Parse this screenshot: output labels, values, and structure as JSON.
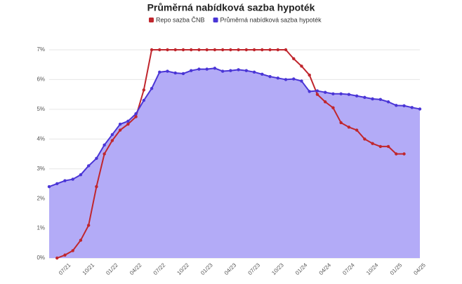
{
  "chart_data": {
    "type": "line",
    "title": "Průměrná nabídková sazba hypoték",
    "categories": [
      null,
      null,
      "07/21",
      null,
      null,
      "10/21",
      null,
      null,
      "01/22",
      null,
      null,
      "04/22",
      null,
      null,
      "07/22",
      null,
      null,
      "10/22",
      null,
      null,
      "01/23",
      null,
      null,
      "04/23",
      null,
      null,
      "07/23",
      null,
      null,
      "10/23",
      null,
      null,
      "01/24",
      null,
      null,
      "04/24",
      null,
      null,
      "07/24",
      null,
      null,
      "10/24",
      null,
      null,
      "01/25",
      null,
      null,
      "04/25"
    ],
    "series": [
      {
        "name": "Repo sazba ČNB",
        "color": "#c0262d",
        "area": false,
        "values": [
          null,
          0.0,
          0.1,
          0.25,
          0.6,
          1.1,
          2.4,
          3.5,
          3.95,
          4.3,
          4.5,
          4.75,
          5.65,
          7.0,
          7.0,
          7.0,
          7.0,
          7.0,
          7.0,
          7.0,
          7.0,
          7.0,
          7.0,
          7.0,
          7.0,
          7.0,
          7.0,
          7.0,
          7.0,
          7.0,
          7.0,
          6.7,
          6.45,
          6.15,
          5.5,
          5.25,
          5.05,
          4.55,
          4.4,
          4.3,
          4.0,
          3.85,
          3.75,
          3.75,
          3.5,
          3.5,
          null,
          null
        ]
      },
      {
        "name": "Průměrná nabídková sazba hypoték",
        "color": "#4a35d6",
        "area": true,
        "values": [
          2.4,
          2.5,
          2.6,
          2.65,
          2.8,
          3.1,
          3.35,
          3.8,
          4.15,
          4.5,
          4.6,
          4.85,
          5.3,
          5.7,
          6.25,
          6.28,
          6.22,
          6.2,
          6.3,
          6.35,
          6.35,
          6.38,
          6.28,
          6.3,
          6.33,
          6.3,
          6.25,
          6.18,
          6.1,
          6.05,
          6.0,
          6.02,
          5.95,
          5.6,
          5.62,
          5.57,
          5.52,
          5.52,
          5.5,
          5.45,
          5.4,
          5.35,
          5.33,
          5.25,
          5.13,
          5.12,
          5.06,
          5.01
        ]
      }
    ],
    "ylim": [
      0,
      7
    ],
    "yticks": [
      {
        "value": 0,
        "label": "0%"
      },
      {
        "value": 1,
        "label": "1%"
      },
      {
        "value": 2,
        "label": "2%"
      },
      {
        "value": 3,
        "label": "3%"
      },
      {
        "value": 4,
        "label": "4%"
      },
      {
        "value": 5,
        "label": "5%"
      },
      {
        "value": 6,
        "label": "6%"
      },
      {
        "value": 7,
        "label": "7%"
      }
    ],
    "grid": true
  }
}
